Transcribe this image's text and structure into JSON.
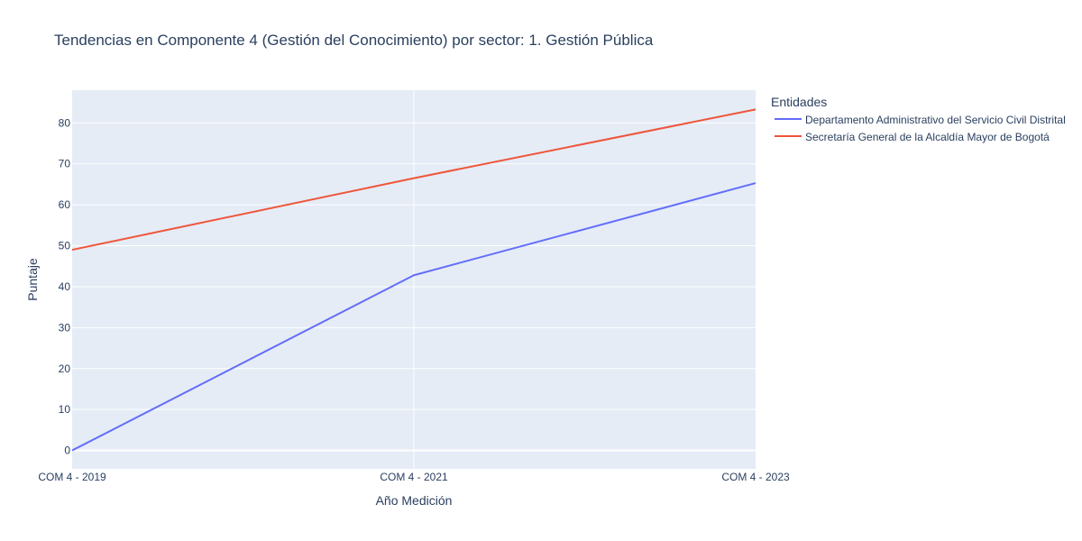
{
  "chart_data": {
    "type": "line",
    "title": "Tendencias en Componente 4 (Gestión del Conocimiento) por sector: 1. Gestión Pública",
    "xlabel": "Año Medición",
    "ylabel": "Puntaje",
    "categories": [
      "COM 4 - 2019",
      "COM 4 - 2021",
      "COM 4 - 2023"
    ],
    "y_ticks": [
      0,
      10,
      20,
      30,
      40,
      50,
      60,
      70,
      80
    ],
    "ylim": [
      -4.5,
      88
    ],
    "grid": true,
    "legend": {
      "title": "Entidades",
      "placement": "right"
    },
    "series": [
      {
        "name": "Departamento Administrativo del Servicio Civil Distrital",
        "values": [
          0,
          42.8,
          65.3
        ],
        "color": "#636efa"
      },
      {
        "name": "Secretaría General de la Alcaldía Mayor de Bogotá",
        "values": [
          49,
          66.5,
          83.3
        ],
        "color": "#ef553b"
      }
    ],
    "colors": {
      "plot_background": "#e5ecf6",
      "gridline": "#ffffff",
      "text": "#2a3f5f"
    }
  }
}
